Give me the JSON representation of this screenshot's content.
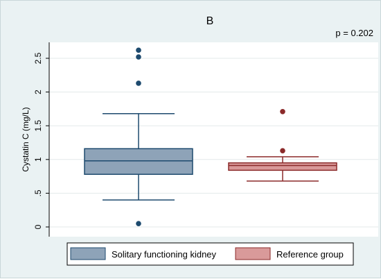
{
  "chart_data": {
    "type": "box",
    "title": "B",
    "annotation": "p = 0.202",
    "ylabel": "Cystatin C (mg/L)",
    "ylim": [
      0,
      2.75
    ],
    "yticks": [
      {
        "value": 0,
        "label": "0"
      },
      {
        "value": 0.5,
        "label": ".5"
      },
      {
        "value": 1,
        "label": "1"
      },
      {
        "value": 1.5,
        "label": "1.5"
      },
      {
        "value": 2,
        "label": "2"
      },
      {
        "value": 2.5,
        "label": "2.5"
      }
    ],
    "grid": true,
    "legend_position": "bottom",
    "series": [
      {
        "name": "Solitary functioning kidney",
        "color": "#8ea3b8",
        "edge_color": "#1d4a6e",
        "outlier_color": "#1d4a6e",
        "min": 0.4,
        "q1": 0.78,
        "median": 0.98,
        "q3": 1.16,
        "max": 1.68,
        "outliers": [
          0.05,
          2.13,
          2.52,
          2.62
        ]
      },
      {
        "name": "Reference group",
        "color": "#d99a9a",
        "edge_color": "#8b2a2a",
        "outlier_color": "#8b2a2a",
        "min": 0.68,
        "q1": 0.84,
        "median": 0.91,
        "q3": 0.95,
        "max": 1.04,
        "outliers": [
          1.13,
          1.71
        ]
      }
    ]
  }
}
